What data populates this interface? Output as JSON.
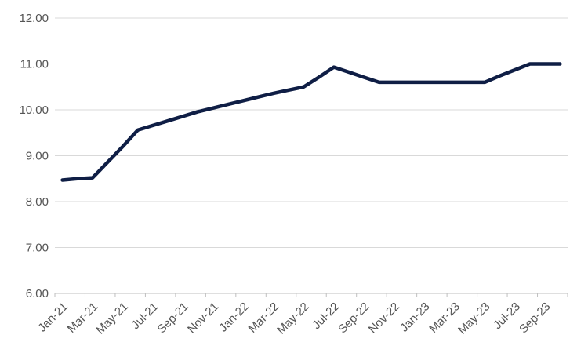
{
  "chart_data": {
    "type": "line",
    "title": "",
    "xlabel": "",
    "ylabel": "",
    "x": [
      "Jan-21",
      "Feb-21",
      "Mar-21",
      "Apr-21",
      "May-21",
      "Jun-21",
      "Jul-21",
      "Aug-21",
      "Sep-21",
      "Oct-21",
      "Nov-21",
      "Dec-21",
      "Jan-22",
      "Feb-22",
      "Mar-22",
      "Apr-22",
      "May-22",
      "Jun-22",
      "Jul-22",
      "Aug-22",
      "Sep-22",
      "Oct-22",
      "Nov-22",
      "Dec-22",
      "Jan-23",
      "Feb-23",
      "Mar-23",
      "Apr-23",
      "May-23",
      "Jun-23",
      "Jul-23",
      "Aug-23",
      "Sep-23",
      "Oct-23"
    ],
    "x_tick_labels": [
      "Jan-21",
      "Mar-21",
      "May-21",
      "Jul-21",
      "Sep-21",
      "Nov-21",
      "Jan-22",
      "Mar-22",
      "May-22",
      "Jul-22",
      "Sep-22",
      "Nov-22",
      "Jan-23",
      "Mar-23",
      "May-23",
      "Jul-23",
      "Sep-23"
    ],
    "series": [
      {
        "values": [
          8.47,
          8.5,
          8.52,
          8.86,
          9.2,
          9.56,
          9.66,
          9.76,
          9.86,
          9.96,
          10.04,
          10.12,
          10.2,
          10.28,
          10.36,
          10.43,
          10.5,
          10.71,
          10.93,
          10.82,
          10.71,
          10.6,
          10.6,
          10.6,
          10.6,
          10.6,
          10.6,
          10.6,
          10.6,
          10.74,
          10.87,
          11.0,
          11.0,
          11.0
        ]
      }
    ],
    "ylim": [
      6.0,
      12.0
    ],
    "y_ticks": [
      "6.00",
      "7.00",
      "8.00",
      "9.00",
      "10.00",
      "11.00",
      "12.00"
    ],
    "grid": true,
    "legend": "none",
    "colors": {
      "line": "#0f1e45",
      "grid": "#d9d9d9",
      "text": "#555555"
    }
  }
}
